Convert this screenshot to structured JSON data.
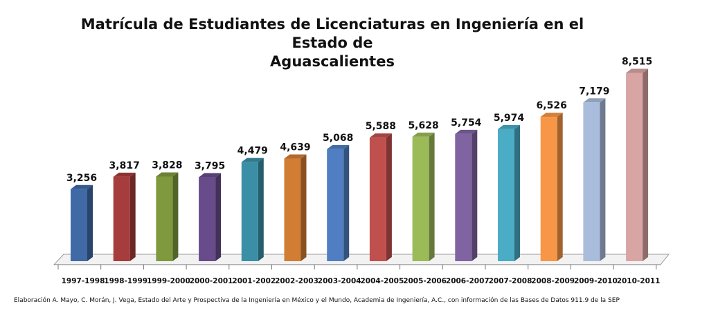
{
  "chart_data": {
    "type": "bar",
    "title_line1": "Matrícula de Estudiantes  de Licenciaturas en Ingeniería en el Estado de",
    "title_line2": "Aguascalientes",
    "xlabel": "",
    "ylabel": "",
    "ylim": [
      0,
      9000
    ],
    "grid": false,
    "legend": "none",
    "categories": [
      "1997-1998",
      "1998-1999",
      "1999-2000",
      "2000-2001",
      "2001-2002",
      "2002-2003",
      "2003-2004",
      "2004-2005",
      "2005-2006",
      "2006-2007",
      "2007-2008",
      "2008-2009",
      "2009-2010",
      "2010-2011"
    ],
    "values": [
      3256,
      3817,
      3828,
      3795,
      4479,
      4639,
      5068,
      5588,
      5628,
      5754,
      5974,
      6526,
      7179,
      8515
    ],
    "value_labels": [
      "3,256",
      "3,817",
      "3,828",
      "3,795",
      "4,479",
      "4,639",
      "5,068",
      "5,588",
      "5,628",
      "5,754",
      "5,974",
      "6,526",
      "7,179",
      "8,515"
    ],
    "colors": [
      "#3f6aa6",
      "#a63d3c",
      "#7f9a3e",
      "#684b8a",
      "#3a8fa6",
      "#d27d34",
      "#4f7fc2",
      "#c0504d",
      "#9bbb59",
      "#8064a2",
      "#4bacc6",
      "#f79646",
      "#a9bcdc",
      "#d9a5a4"
    ]
  },
  "source_note": "Elaboración A. Mayo, C. Morán, J. Vega, Estado del Arte y Prospectiva de la Ingeniería en México y el Mundo, Academia de Ingeniería, A.C., con información de las Bases de Datos  911.9 de la SEP"
}
